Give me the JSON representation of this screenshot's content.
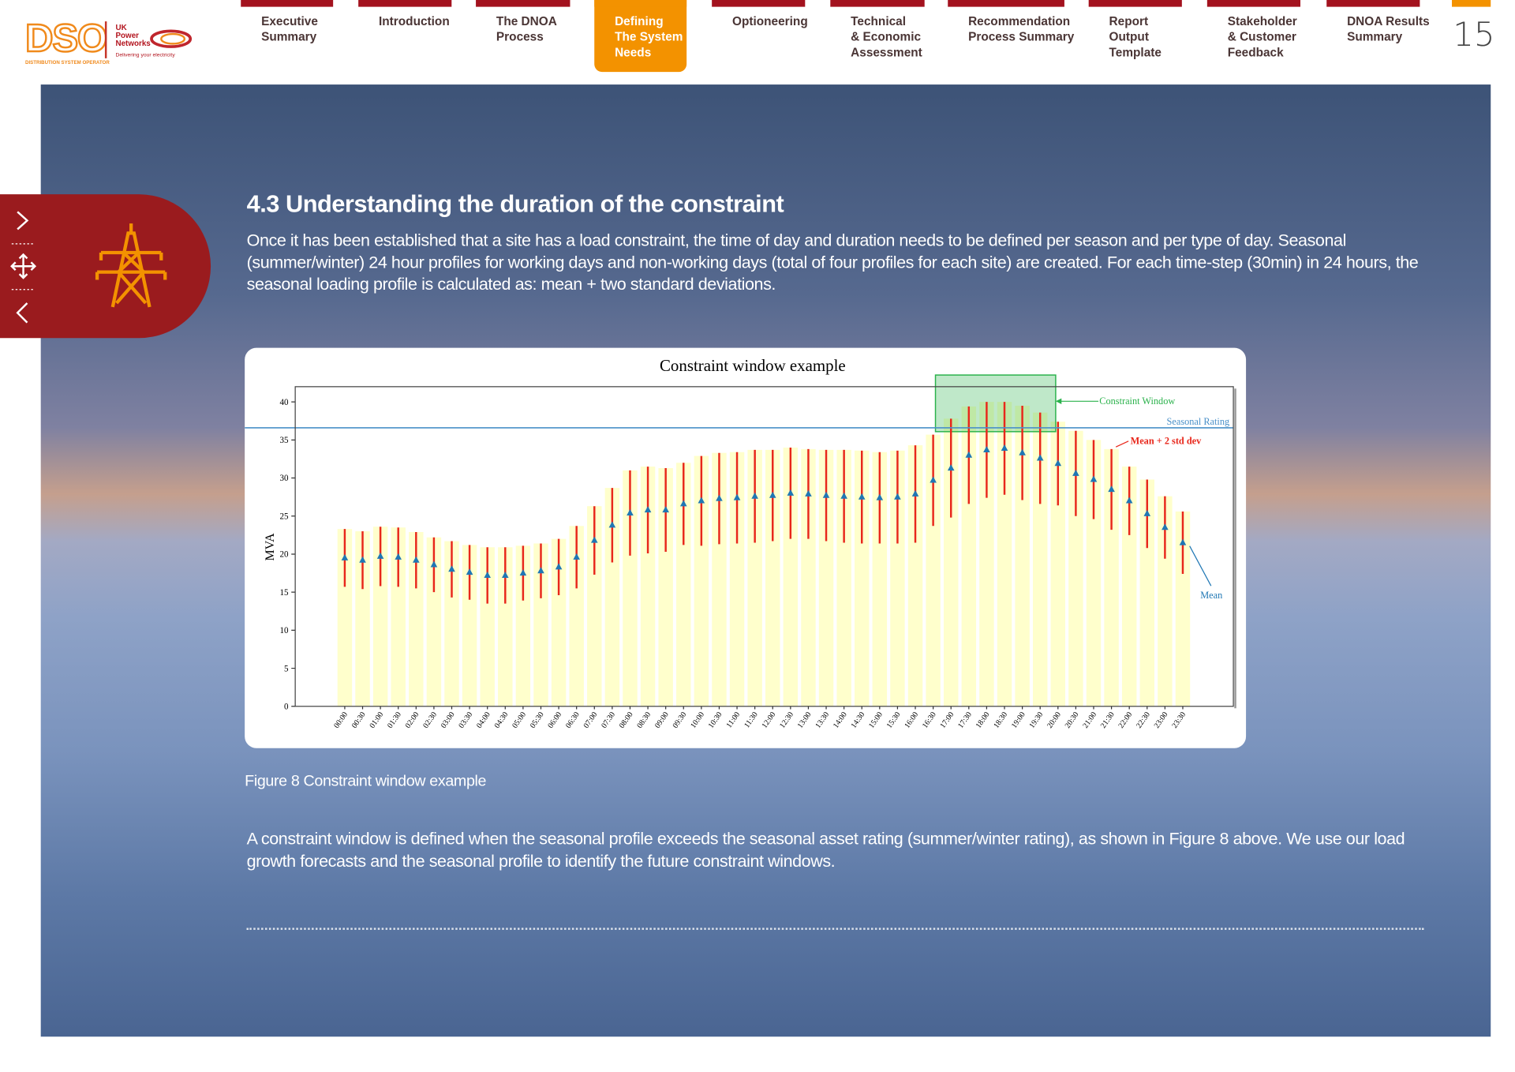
{
  "logo": {
    "mark": "DSO",
    "subtitle": "DISTRIBUTION SYSTEM OPERATOR",
    "brand": [
      "UK",
      "Power",
      "Networks"
    ],
    "tagline": "Delivering your electricity"
  },
  "nav": [
    {
      "label": [
        "Executive",
        "Summary"
      ]
    },
    {
      "label": [
        "Introduction"
      ]
    },
    {
      "label": [
        "The DNOA",
        "Process"
      ]
    },
    {
      "label": [
        "Defining",
        "The System",
        "Needs"
      ],
      "active": true
    },
    {
      "label": [
        "Optioneering"
      ]
    },
    {
      "label": [
        "Technical",
        "& Economic",
        "Assessment"
      ]
    },
    {
      "label": [
        "Recommendation",
        "Process Summary"
      ]
    },
    {
      "label": [
        "Report",
        "Output",
        "Template"
      ]
    },
    {
      "label": [
        "Stakeholder",
        "& Customer",
        "Feedback"
      ]
    },
    {
      "label": [
        "DNOA Results",
        "Summary"
      ]
    }
  ],
  "page_number": 15,
  "heading": "4.3 Understanding the duration of the constraint",
  "intro": "Once it has been established that a site has a load constraint, the time of day and duration needs to be defined per season and per type of day. Seasonal (summer/winter) 24 hour profiles for working days and non-working days (total of four profiles for each site) are created. For each time-step (30min) in 24 hours, the seasonal loading profile is calculated as: mean + two standard deviations.",
  "figure_caption": "Figure 8 Constraint window example",
  "closing": "A constraint window is defined when the seasonal profile exceeds the seasonal asset rating (summer/winter rating), as shown in Figure 8 above. We use our load growth forecasts and the seasonal profile to identify the future constraint windows.",
  "chart_data": {
    "type": "bar",
    "title": "Constraint window example",
    "ylabel": "MVA",
    "categories": [
      "00:00",
      "00:30",
      "01:00",
      "01:30",
      "02:00",
      "02:30",
      "03:00",
      "03:30",
      "04:00",
      "04:30",
      "05:00",
      "05:30",
      "06:00",
      "06:30",
      "07:00",
      "07:30",
      "08:00",
      "08:30",
      "09:00",
      "09:30",
      "10:00",
      "10:30",
      "11:00",
      "11:30",
      "12:00",
      "12:30",
      "13:00",
      "13:30",
      "14:00",
      "14:30",
      "15:00",
      "15:30",
      "16:00",
      "16:30",
      "17:00",
      "17:30",
      "18:00",
      "18:30",
      "19:00",
      "19:30",
      "20:00",
      "20:30",
      "21:00",
      "21:30",
      "22:00",
      "22:30",
      "23:00",
      "23:30"
    ],
    "series": [
      {
        "name": "Mean",
        "color": "#1f77b4",
        "values": [
          19.5,
          19.2,
          19.7,
          19.6,
          19.2,
          18.6,
          18.0,
          17.6,
          17.2,
          17.2,
          17.5,
          17.8,
          18.3,
          19.6,
          21.8,
          23.8,
          25.4,
          25.8,
          25.8,
          26.6,
          27.0,
          27.3,
          27.4,
          27.6,
          27.7,
          28.0,
          27.9,
          27.7,
          27.6,
          27.5,
          27.4,
          27.5,
          27.9,
          29.7,
          31.3,
          33.0,
          33.7,
          33.9,
          33.3,
          32.6,
          31.9,
          30.6,
          29.8,
          28.5,
          27.0,
          25.3,
          23.5,
          21.5
        ]
      }
    ],
    "errors": {
      "name": "Mean + 2 std dev",
      "color": "#e8271b",
      "values": [
        3.8,
        3.8,
        3.9,
        3.9,
        3.7,
        3.6,
        3.7,
        3.6,
        3.7,
        3.7,
        3.6,
        3.6,
        3.7,
        4.1,
        4.5,
        4.9,
        5.6,
        5.7,
        5.5,
        5.4,
        5.9,
        6.0,
        6.0,
        6.1,
        6.0,
        6.0,
        5.9,
        6.0,
        6.1,
        6.1,
        6.0,
        6.1,
        6.4,
        6.0,
        6.5,
        6.4,
        6.3,
        6.1,
        6.2,
        6.0,
        5.5,
        5.6,
        5.2,
        5.3,
        4.5,
        4.5,
        4.1,
        4.1
      ]
    },
    "bar_color": "#ffffcc",
    "rating": {
      "name": "Seasonal Rating",
      "value": 36.6,
      "color": "#4a90c8"
    },
    "constraint_window": {
      "name": "Constraint Window",
      "from": "17:00",
      "to": "19:30",
      "color": "#2bb24c"
    },
    "ylim": [
      0,
      42
    ],
    "yticks": [
      0,
      5,
      10,
      15,
      20,
      25,
      30,
      35,
      40
    ]
  }
}
